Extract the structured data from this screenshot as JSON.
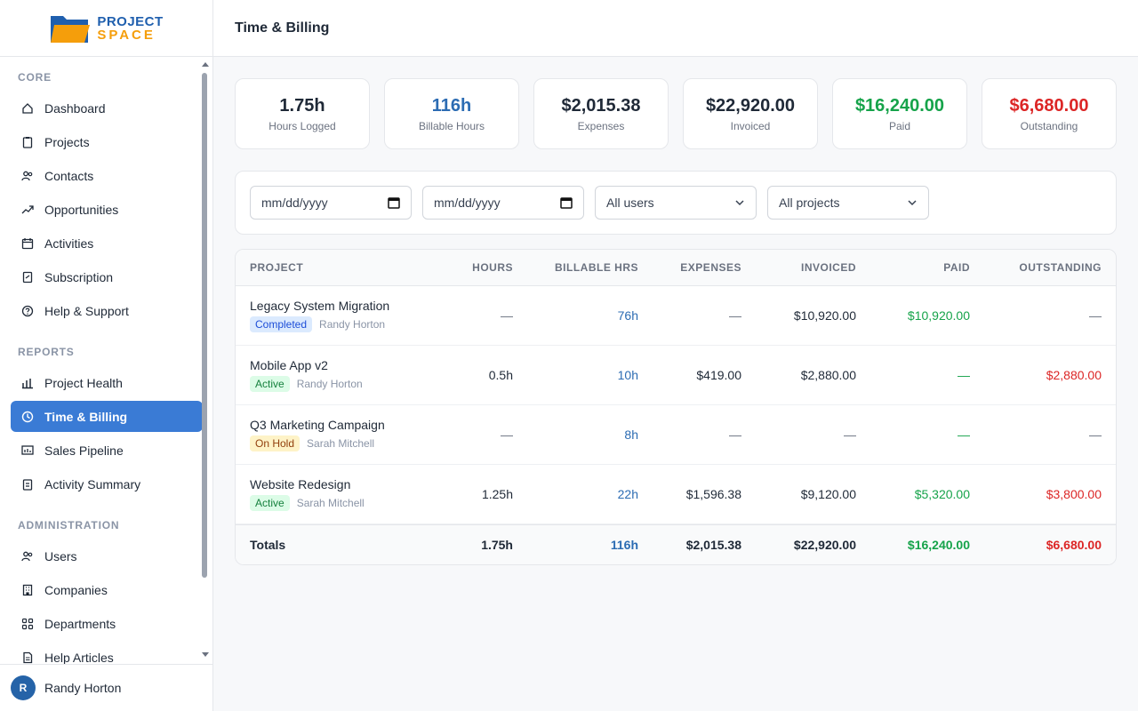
{
  "brand": {
    "line1": "PROJECT",
    "line2": "SPACE"
  },
  "sidebar": {
    "sections": [
      {
        "title": "CORE",
        "items": [
          {
            "label": "Dashboard",
            "icon": "home-icon"
          },
          {
            "label": "Projects",
            "icon": "clipboard-icon"
          },
          {
            "label": "Contacts",
            "icon": "users-icon"
          },
          {
            "label": "Opportunities",
            "icon": "trending-up-icon"
          },
          {
            "label": "Activities",
            "icon": "calendar-icon"
          },
          {
            "label": "Subscription",
            "icon": "receipt-icon"
          },
          {
            "label": "Help & Support",
            "icon": "help-circle-icon"
          }
        ]
      },
      {
        "title": "REPORTS",
        "items": [
          {
            "label": "Project Health",
            "icon": "bar-chart-icon"
          },
          {
            "label": "Time & Billing",
            "icon": "clock-icon",
            "active": true
          },
          {
            "label": "Sales Pipeline",
            "icon": "presentation-icon"
          },
          {
            "label": "Activity Summary",
            "icon": "clipboard-list-icon"
          }
        ]
      },
      {
        "title": "ADMINISTRATION",
        "items": [
          {
            "label": "Users",
            "icon": "users-icon"
          },
          {
            "label": "Companies",
            "icon": "building-icon"
          },
          {
            "label": "Departments",
            "icon": "grid-icon"
          },
          {
            "label": "Help Articles",
            "icon": "file-text-icon"
          }
        ]
      }
    ]
  },
  "user": {
    "initial": "R",
    "name": "Randy Horton"
  },
  "header": {
    "title": "Time & Billing"
  },
  "stats": [
    {
      "value": "1.75h",
      "label": "Hours Logged",
      "color": "#1f2937"
    },
    {
      "value": "116h",
      "label": "Billable Hours",
      "color": "#2c6cb3"
    },
    {
      "value": "$2,015.38",
      "label": "Expenses",
      "color": "#1f2937"
    },
    {
      "value": "$22,920.00",
      "label": "Invoiced",
      "color": "#1f2937"
    },
    {
      "value": "$16,240.00",
      "label": "Paid",
      "color": "#16a34a"
    },
    {
      "value": "$6,680.00",
      "label": "Outstanding",
      "color": "#dc2626"
    }
  ],
  "filters": {
    "start_date_placeholder": "mm/dd/yyyy",
    "end_date_placeholder": "mm/dd/yyyy",
    "user_select": "All users",
    "project_select": "All projects"
  },
  "table": {
    "columns": [
      "PROJECT",
      "HOURS",
      "BILLABLE HRS",
      "EXPENSES",
      "INVOICED",
      "PAID",
      "OUTSTANDING"
    ],
    "rows": [
      {
        "project": "Legacy System Migration",
        "status": "Completed",
        "status_class": "completed",
        "owner": "Randy Horton",
        "hours": "—",
        "billable": "76h",
        "expenses": "—",
        "invoiced": "$10,920.00",
        "paid": "$10,920.00",
        "paid_class": "green",
        "outstanding": "—",
        "out_class": "muted"
      },
      {
        "project": "Mobile App v2",
        "status": "Active",
        "status_class": "active",
        "owner": "Randy Horton",
        "hours": "0.5h",
        "billable": "10h",
        "expenses": "$419.00",
        "invoiced": "$2,880.00",
        "paid": "—",
        "paid_class": "green",
        "outstanding": "$2,880.00",
        "out_class": "red"
      },
      {
        "project": "Q3 Marketing Campaign",
        "status": "On Hold",
        "status_class": "hold",
        "owner": "Sarah Mitchell",
        "hours": "—",
        "billable": "8h",
        "expenses": "—",
        "invoiced": "—",
        "paid": "—",
        "paid_class": "green",
        "outstanding": "—",
        "out_class": "muted"
      },
      {
        "project": "Website Redesign",
        "status": "Active",
        "status_class": "active",
        "owner": "Sarah Mitchell",
        "hours": "1.25h",
        "billable": "22h",
        "expenses": "$1,596.38",
        "invoiced": "$9,120.00",
        "paid": "$5,320.00",
        "paid_class": "green",
        "outstanding": "$3,800.00",
        "out_class": "red"
      }
    ],
    "totals": {
      "label": "Totals",
      "hours": "1.75h",
      "billable": "116h",
      "expenses": "$2,015.38",
      "invoiced": "$22,920.00",
      "paid": "$16,240.00",
      "outstanding": "$6,680.00"
    }
  }
}
